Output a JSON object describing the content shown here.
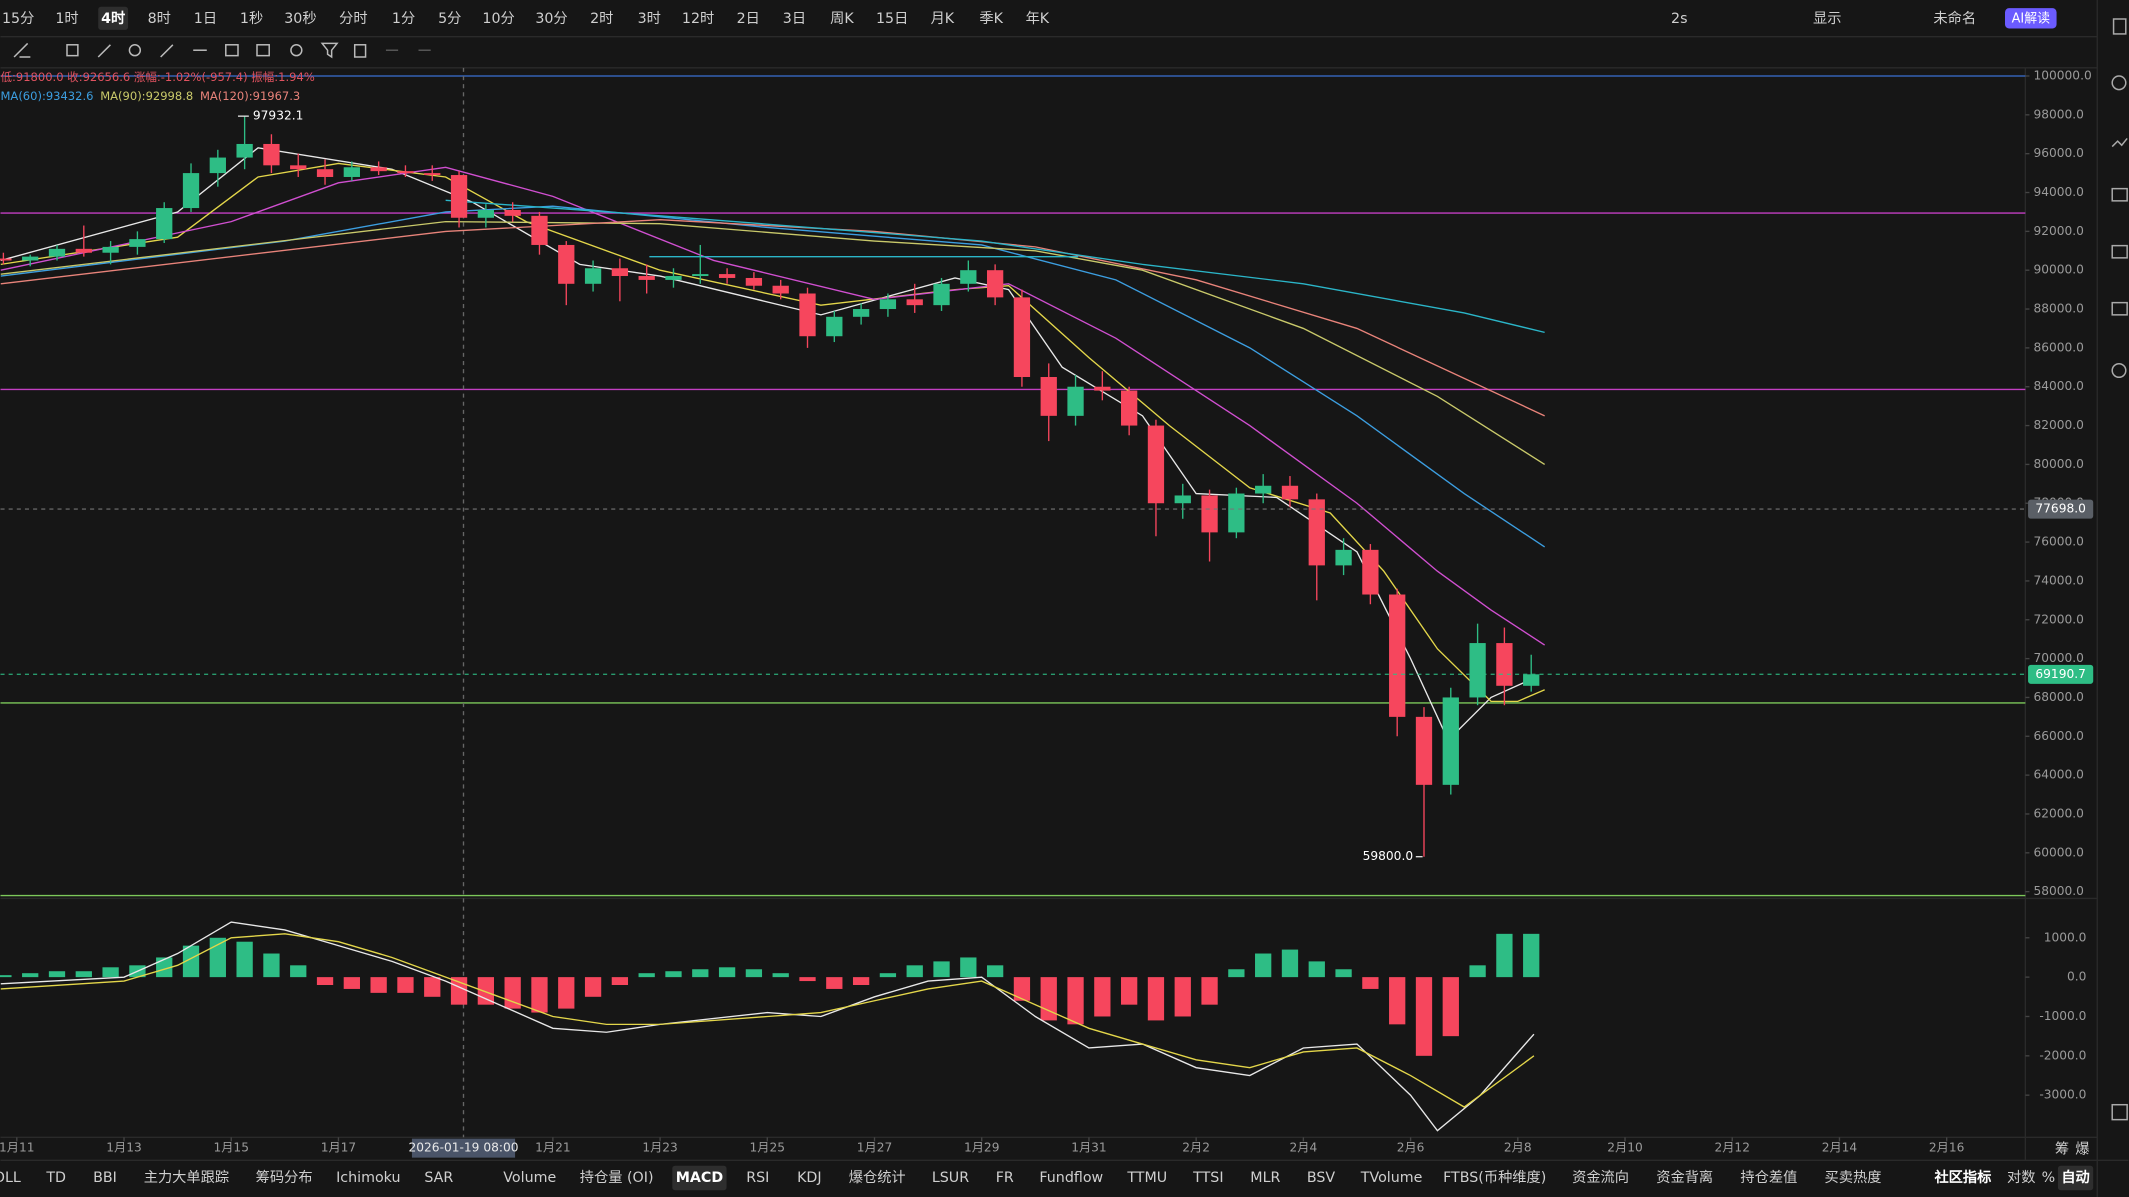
{
  "toolbar": {
    "timeframes": [
      "15分",
      "1时",
      "4时",
      "8时",
      "1日",
      "1秒",
      "30秒",
      "分时",
      "1分",
      "5分",
      "10分",
      "30分",
      "2时",
      "3时",
      "12时",
      "2日",
      "3日",
      "周K",
      "15日",
      "月K",
      "季K",
      "年K"
    ],
    "active": 2,
    "right_tools": [
      "2s",
      "显示",
      "未命名",
      "AI解读"
    ]
  },
  "chart_data": [
    {
      "type": "candlestick",
      "info": "低:91800.0 收:92656.6 涨幅:-1.02%(-957.4) 振幅:1.94%",
      "up_color": "#2ebd85",
      "down_color": "#f6465d",
      "xlim": [
        -0.304,
        37.468
      ],
      "ylim": [
        57651,
        100419
      ],
      "xticks": [
        {
          "value": 0,
          "label": "1月11"
        },
        {
          "value": 2,
          "label": "1月13"
        },
        {
          "value": 4,
          "label": "1月15"
        },
        {
          "value": 6,
          "label": "1月17"
        },
        {
          "value": 10,
          "label": "1月21"
        },
        {
          "value": 12,
          "label": "1月23"
        },
        {
          "value": 14,
          "label": "1月25"
        },
        {
          "value": 16,
          "label": "1月27"
        },
        {
          "value": 18,
          "label": "1月29"
        },
        {
          "value": 20,
          "label": "1月31"
        },
        {
          "value": 22,
          "label": "2月2"
        },
        {
          "value": 24,
          "label": "2月4"
        },
        {
          "value": 26,
          "label": "2月6"
        },
        {
          "value": 28,
          "label": "2月8"
        },
        {
          "value": 30,
          "label": "2月10"
        },
        {
          "value": 32,
          "label": "2月12"
        },
        {
          "value": 34,
          "label": "2月14"
        },
        {
          "value": 36,
          "label": "2月16"
        }
      ],
      "yticks": [
        {
          "value": 100000,
          "label": "100000.0"
        },
        {
          "value": 98000,
          "label": "98000.0"
        },
        {
          "value": 96000,
          "label": "96000.0"
        },
        {
          "value": 94000,
          "label": "94000.0"
        },
        {
          "value": 92000,
          "label": "92000.0"
        },
        {
          "value": 90000,
          "label": "90000.0"
        },
        {
          "value": 88000,
          "label": "88000.0"
        },
        {
          "value": 86000,
          "label": "86000.0"
        },
        {
          "value": 84000,
          "label": "84000.0"
        },
        {
          "value": 82000,
          "label": "82000.0"
        },
        {
          "value": 80000,
          "label": "80000.0"
        },
        {
          "value": 78000,
          "label": "78000.0"
        },
        {
          "value": 76000,
          "label": "76000.0"
        },
        {
          "value": 74000,
          "label": "74000.0"
        },
        {
          "value": 72000,
          "label": "72000.0"
        },
        {
          "value": 70000,
          "label": "70000.0"
        },
        {
          "value": 68000,
          "label": "68000.0"
        },
        {
          "value": 66000,
          "label": "66000.0"
        },
        {
          "value": 64000,
          "label": "64000.0"
        },
        {
          "value": 62000,
          "label": "62000.0"
        },
        {
          "value": 60000,
          "label": "60000.0"
        },
        {
          "value": 58000,
          "label": "58000.0"
        }
      ],
      "grid": false,
      "crosshair": {
        "x": 8.333,
        "label": "2026-01-19 08:00"
      },
      "x": [
        -0.25,
        0.25,
        0.75,
        1.25,
        1.75,
        2.25,
        2.75,
        3.25,
        3.75,
        4.25,
        4.75,
        5.25,
        5.75,
        6.25,
        6.75,
        7.25,
        7.75,
        8.25,
        8.75,
        9.25,
        9.75,
        10.25,
        10.75,
        11.25,
        11.75,
        12.25,
        12.75,
        13.25,
        13.75,
        14.25,
        14.75,
        15.25,
        15.75,
        16.25,
        16.75,
        17.25,
        17.75,
        18.25,
        18.75,
        19.25,
        19.75,
        20.25,
        20.75,
        21.25,
        21.75,
        22.25,
        22.75,
        23.25,
        23.75,
        24.25,
        24.75,
        25.25,
        25.75,
        26.25,
        26.75,
        27.25,
        27.75,
        28.25
      ],
      "open": [
        90600,
        90500,
        90700,
        91100,
        90900,
        91200,
        91600,
        93200,
        95000,
        95800,
        96500,
        95400,
        95200,
        94800,
        95300,
        95100,
        95000,
        94900,
        92700,
        93100,
        92800,
        91300,
        89300,
        90100,
        89700,
        89500,
        89700,
        89800,
        89600,
        89200,
        88800,
        86600,
        87600,
        88000,
        88500,
        88200,
        89300,
        90000,
        88600,
        84500,
        82500,
        84000,
        83800,
        82000,
        78000,
        78400,
        76500,
        78500,
        78900,
        78200,
        74800,
        75600,
        73300,
        67000,
        63500,
        68000,
        70800,
        68600
      ],
      "high": [
        90900,
        90800,
        91300,
        92300,
        91500,
        92000,
        93500,
        95500,
        96200,
        97932.1,
        97000,
        96000,
        95700,
        95600,
        95600,
        95400,
        95400,
        95100,
        93400,
        93500,
        93000,
        91500,
        90500,
        90600,
        90300,
        90100,
        91300,
        90100,
        89900,
        89500,
        89100,
        87900,
        88300,
        88800,
        89300,
        89600,
        90500,
        90300,
        89000,
        85200,
        84600,
        84800,
        84000,
        82300,
        79000,
        78700,
        78800,
        79500,
        79400,
        78500,
        76200,
        75900,
        73600,
        67500,
        68500,
        71800,
        71600,
        70200
      ],
      "low": [
        90300,
        90200,
        90500,
        90700,
        90300,
        90800,
        91400,
        93000,
        94300,
        95200,
        95000,
        94800,
        94400,
        94600,
        94900,
        94800,
        94600,
        92200,
        92200,
        92500,
        90800,
        88200,
        88900,
        88400,
        88800,
        89100,
        89300,
        89300,
        89000,
        88500,
        86000,
        86300,
        87200,
        87600,
        87800,
        87900,
        88900,
        88200,
        84000,
        81200,
        82000,
        83300,
        81500,
        76300,
        77200,
        75000,
        76200,
        78000,
        77800,
        73000,
        74300,
        72800,
        66000,
        59800,
        63000,
        67600,
        67600,
        68300
      ],
      "close": [
        90500,
        90700,
        91100,
        90900,
        91200,
        91600,
        93200,
        95000,
        95800,
        96500,
        95400,
        95200,
        94800,
        95300,
        95100,
        95000,
        94900,
        92700,
        93100,
        92800,
        91300,
        89300,
        90100,
        89700,
        89500,
        89700,
        89800,
        89600,
        89200,
        88800,
        86600,
        87600,
        88000,
        88500,
        88200,
        89300,
        90000,
        88600,
        84500,
        82500,
        84000,
        83800,
        82000,
        78000,
        78400,
        76500,
        78500,
        78900,
        78200,
        74800,
        75600,
        73300,
        67000,
        63500,
        68000,
        70800,
        68600,
        69190.7
      ],
      "lines": [
        {
          "color": "#e8e8e8",
          "x": [
            -0.3,
            3,
            4.5,
            7,
            8.5,
            10.5,
            12,
            15,
            17.5,
            18.5,
            19.5,
            21,
            22,
            23.5,
            25,
            26,
            26.7,
            27.5,
            28.3
          ],
          "values": [
            90500,
            93000,
            96300,
            95200,
            93500,
            90300,
            89700,
            87700,
            89600,
            89000,
            85000,
            82500,
            78500,
            78300,
            75500,
            70000,
            65800,
            68000,
            69000
          ]
        },
        {
          "color": "#e3d64a",
          "x": [
            -0.3,
            3,
            4.5,
            6,
            8,
            9.5,
            12,
            15,
            17.5,
            18.5,
            20,
            21.5,
            23,
            24.5,
            25.5,
            26.5,
            27.5,
            28,
            28.5
          ],
          "values": [
            90300,
            91700,
            94800,
            95500,
            94800,
            92500,
            90000,
            88200,
            89000,
            89200,
            85500,
            82000,
            78800,
            77500,
            74500,
            70500,
            67800,
            67800,
            68400
          ]
        },
        {
          "color": "#d04fd0",
          "x": [
            -0.3,
            4,
            6,
            8,
            10,
            13,
            16,
            18.5,
            20.5,
            23,
            25,
            26.5,
            27.5,
            28.5
          ],
          "values": [
            90000,
            92500,
            94500,
            95300,
            93800,
            90500,
            88500,
            89300,
            86500,
            82000,
            78000,
            74500,
            72500,
            70700
          ]
        },
        {
          "color": "#3c9ee0",
          "legend_label": "MA(60):93432.6",
          "x": [
            -0.3,
            5,
            8,
            10,
            14,
            18,
            20.5,
            23,
            25,
            27,
            28.5
          ],
          "values": [
            89700,
            91500,
            93000,
            93300,
            92200,
            91300,
            89500,
            86000,
            82500,
            78500,
            75750
          ]
        },
        {
          "color": "#c9c96a",
          "legend_label": "MA(90):92998.8",
          "x": [
            -0.3,
            8,
            12,
            16,
            19,
            21,
            24,
            26.5,
            28.5
          ],
          "values": [
            89800,
            92500,
            92400,
            91500,
            91000,
            90000,
            87000,
            83500,
            80000
          ]
        },
        {
          "color": "#e8837a",
          "legend_label": "MA(120):91967.3",
          "x": [
            -0.3,
            8,
            12,
            16,
            19,
            22,
            25,
            28.5
          ],
          "values": [
            89300,
            92000,
            92600,
            92000,
            91200,
            89500,
            87000,
            82500
          ]
        },
        {
          "color": "#2bb5c8",
          "x": [
            8,
            12,
            18,
            21,
            24,
            27,
            28.5
          ],
          "values": [
            93600,
            92800,
            91500,
            90300,
            89300,
            87800,
            86800
          ]
        },
        {
          "color": "#2bb5c8",
          "x": [
            11.8,
            19.8
          ],
          "values": [
            90700,
            90700
          ]
        }
      ],
      "hlines": [
        {
          "value": 100000,
          "color": "#3b6fd4"
        },
        {
          "value": 92940,
          "color": "#c23fc2"
        },
        {
          "value": 83860,
          "color": "#c23fc2"
        },
        {
          "value": 67720,
          "color": "#7cc85a"
        },
        {
          "value": 57800,
          "color": "#7cc85a"
        }
      ],
      "price_lines": [
        {
          "value": 77698,
          "label": "77698.0",
          "color": "#5a5f66"
        },
        {
          "value": 69190.7,
          "label": "69190.7",
          "color": "#2ebd85"
        }
      ],
      "annotations": [
        {
          "x": 4.05,
          "value": 97932.1,
          "label": "97932.1",
          "side": "right"
        },
        {
          "x": 26.3,
          "value": 59800,
          "label": "59800.0",
          "side": "left"
        }
      ],
      "side_labels": [
        "筹",
        "爆"
      ]
    },
    {
      "type": "macd",
      "ylim": [
        -4070,
        2000
      ],
      "yticks": [
        {
          "value": 1000,
          "label": "1000.0"
        },
        {
          "value": 0,
          "label": "0.0"
        },
        {
          "value": -1000,
          "label": "-1000.0"
        },
        {
          "value": -2000,
          "label": "-2000.0"
        },
        {
          "value": -3000,
          "label": "-3000.0"
        }
      ],
      "hist": [
        50,
        100,
        150,
        150,
        250,
        300,
        500,
        800,
        1000,
        900,
        600,
        300,
        -200,
        -300,
        -400,
        -400,
        -500,
        -700,
        -700,
        -800,
        -900,
        -800,
        -500,
        -200,
        100,
        150,
        200,
        250,
        200,
        100,
        -100,
        -300,
        -200,
        100,
        300,
        400,
        500,
        300,
        -600,
        -1100,
        -1200,
        -1000,
        -700,
        -1100,
        -1000,
        -700,
        200,
        600,
        700,
        400,
        200,
        -300,
        -1200,
        -2000,
        -1500,
        300,
        1100,
        1100
      ],
      "lines": [
        {
          "color": "#e8e8e8",
          "x": [
            -0.3,
            2,
            3,
            4,
            5,
            6,
            7,
            8,
            9,
            10,
            11,
            12,
            14,
            15,
            16,
            17,
            18,
            19,
            20,
            21,
            22,
            23,
            24,
            25,
            26,
            26.5,
            27.3,
            28.3
          ],
          "values": [
            -170,
            0,
            600,
            1400,
            1200,
            800,
            400,
            -100,
            -700,
            -1300,
            -1400,
            -1200,
            -900,
            -1000,
            -500,
            -100,
            0,
            -1000,
            -1800,
            -1700,
            -2300,
            -2500,
            -1800,
            -1700,
            -3000,
            -3900,
            -3000,
            -1450
          ]
        },
        {
          "color": "#e3d64a",
          "x": [
            -0.3,
            2,
            3,
            4,
            5,
            6,
            7,
            8,
            9,
            10,
            11,
            12,
            14,
            15,
            16,
            17,
            18,
            19,
            20,
            21,
            22,
            23,
            24,
            25,
            26,
            27,
            28.3
          ],
          "values": [
            -300,
            -100,
            300,
            1000,
            1100,
            900,
            500,
            0,
            -500,
            -1000,
            -1200,
            -1200,
            -1000,
            -900,
            -600,
            -300,
            -100,
            -700,
            -1300,
            -1700,
            -2100,
            -2300,
            -1900,
            -1800,
            -2500,
            -3300,
            -2000
          ]
        }
      ]
    }
  ],
  "indicators": {
    "tabs": [
      "OLL",
      "TD",
      "BBI",
      "主力大单跟踪",
      "筹码分布",
      "Ichimoku",
      "SAR",
      "Volume",
      "持仓量 (OI)",
      "MACD",
      "RSI",
      "KDJ",
      "爆仓统计",
      "LSUR",
      "FR",
      "Fundflow",
      "TTMU",
      "TTSI",
      "MLR",
      "BSV",
      "TVolume",
      "FTBS(币种维度)",
      "资金流向",
      "资金背离",
      "持仓差值",
      "买卖热度"
    ],
    "active": 9,
    "right": [
      "社区指标",
      "对数",
      "%",
      "自动"
    ],
    "right_active": 3
  }
}
